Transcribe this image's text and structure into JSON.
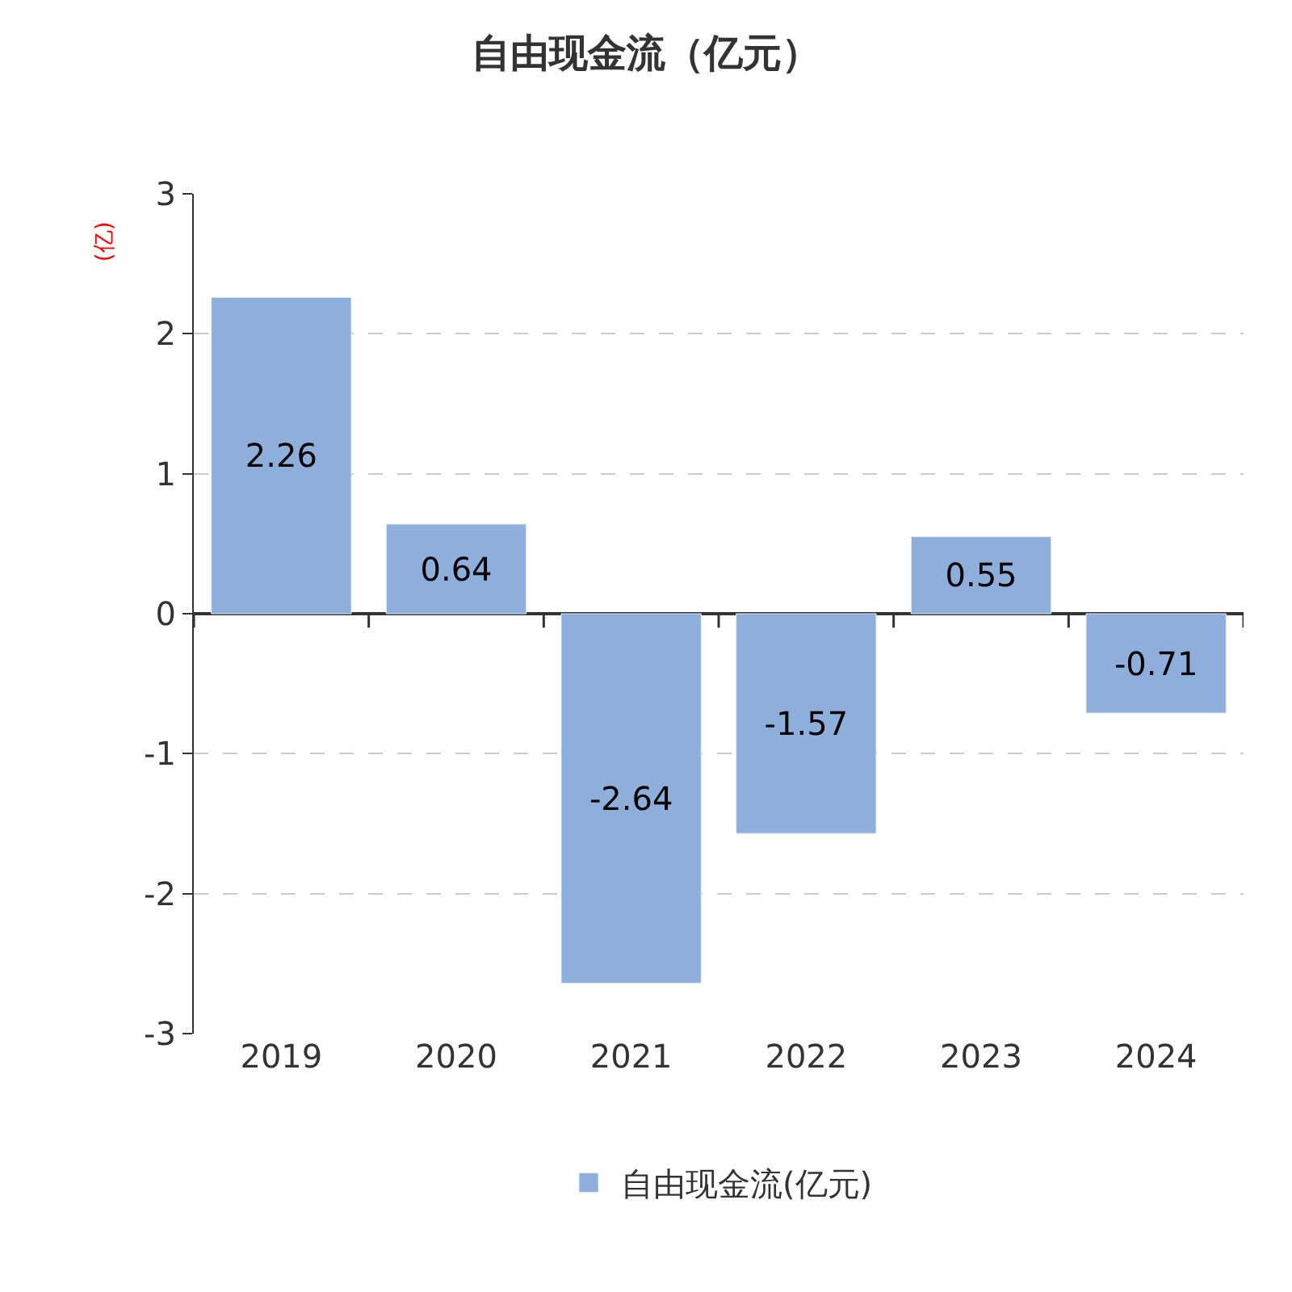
{
  "chart_data": {
    "type": "bar",
    "title": "自由现金流（亿元）",
    "ylabel": "(亿)",
    "categories": [
      "2019",
      "2020",
      "2021",
      "2022",
      "2023",
      "2024"
    ],
    "series": [
      {
        "name": "自由现金流(亿元)",
        "color": "#8eaedb",
        "values": [
          2.26,
          0.64,
          -2.64,
          -1.57,
          0.55,
          -0.71
        ]
      }
    ],
    "ylim": [
      -3,
      3
    ],
    "yticks": [
      -3,
      -2,
      -1,
      0,
      1,
      2,
      3
    ],
    "grid": "y",
    "legend": "bottom",
    "data_labels": true
  }
}
